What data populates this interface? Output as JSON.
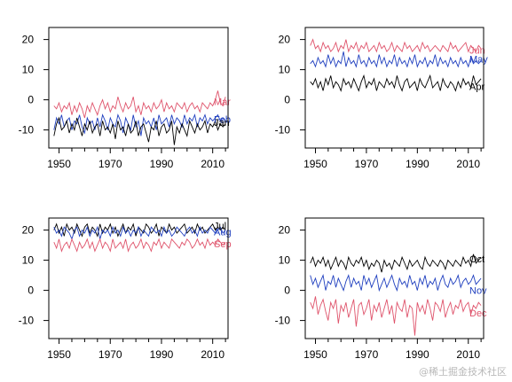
{
  "colors": {
    "black": "#000000",
    "blue": "#1f3fbf",
    "red": "#df536b"
  },
  "watermark": "@稀土掘金技术社区",
  "chart_data": [
    {
      "type": "line",
      "panel": "top-left",
      "xlim": [
        1946,
        2016
      ],
      "ylim": [
        -16,
        24
      ],
      "xticks": [
        1950,
        1970,
        1990,
        2010
      ],
      "yticks": [
        20,
        10,
        0,
        -10
      ],
      "x_start": 1948,
      "series": [
        {
          "name": "Mar",
          "color": "red",
          "labelY": -0.5,
          "values": [
            -2,
            -3,
            -1,
            -4,
            -2,
            -3,
            -1,
            -5,
            -2,
            -4,
            -1,
            -3,
            -6,
            -2,
            -4,
            -1,
            -3,
            -5,
            -2,
            0,
            -3,
            -1,
            -4,
            -2,
            -3,
            1,
            -2,
            -4,
            -1,
            -3,
            -2,
            1,
            -4,
            -2,
            -5,
            -1,
            -3,
            -2,
            -4,
            -1,
            -3,
            -2,
            0,
            -4,
            -1,
            -3,
            -2,
            -4,
            -1,
            -2,
            -3,
            -1,
            -4,
            -2,
            -1,
            -3,
            -2,
            -4,
            -1,
            -2,
            -3,
            -1,
            -2,
            0,
            3,
            -1,
            -2,
            1
          ]
        },
        {
          "name": "Feb",
          "color": "blue",
          "labelY": -6.5,
          "values": [
            -10,
            -6,
            -8,
            -5,
            -9,
            -7,
            -6,
            -10,
            -7,
            -8,
            -5,
            -9,
            -11,
            -6,
            -8,
            -7,
            -10,
            -6,
            -9,
            -5,
            -7,
            -10,
            -6,
            -8,
            -9,
            -5,
            -7,
            -11,
            -6,
            -8,
            -10,
            -5,
            -9,
            -7,
            -12,
            -6,
            -8,
            -7,
            -9,
            -6,
            -10,
            -5,
            -8,
            -7,
            -6,
            -9,
            -5,
            -8,
            -6,
            -7,
            -9,
            -5,
            -8,
            -6,
            -7,
            -5,
            -9,
            -6,
            -7,
            -5,
            -8,
            -6,
            -7,
            -6,
            -5,
            -7,
            -6,
            -7
          ]
        },
        {
          "name": "Jan",
          "color": "black",
          "labelY": -7.5,
          "values": [
            -12,
            -8,
            -6,
            -10,
            -9,
            -7,
            -11,
            -8,
            -10,
            -6,
            -9,
            -12,
            -8,
            -10,
            -7,
            -11,
            -9,
            -8,
            -12,
            -7,
            -10,
            -9,
            -11,
            -8,
            -13,
            -7,
            -10,
            -9,
            -12,
            -8,
            -11,
            -10,
            -7,
            -12,
            -9,
            -8,
            -11,
            -14,
            -9,
            -10,
            -7,
            -12,
            -9,
            -8,
            -11,
            -10,
            -7,
            -15,
            -9,
            -11,
            -8,
            -10,
            -12,
            -7,
            -9,
            -11,
            -8,
            -10,
            -9,
            -7,
            -11,
            -8,
            -9,
            -7,
            -10,
            -8,
            -9,
            -8
          ]
        }
      ]
    },
    {
      "type": "line",
      "panel": "top-right",
      "xlim": [
        1946,
        2016
      ],
      "ylim": [
        -16,
        24
      ],
      "xticks": [
        1950,
        1970,
        1990,
        2010
      ],
      "yticks": [
        20,
        10,
        0,
        -10
      ],
      "x_start": 1948,
      "series": [
        {
          "name": "Jun",
          "color": "red",
          "labelY": 16.5,
          "values": [
            18,
            20,
            17,
            18,
            16,
            19,
            17,
            18,
            16,
            17,
            19,
            16,
            18,
            17,
            20,
            16,
            18,
            17,
            19,
            16,
            18,
            17,
            19,
            16,
            17,
            18,
            16,
            19,
            17,
            18,
            16,
            17,
            19,
            16,
            18,
            17,
            16,
            19,
            17,
            18,
            16,
            17,
            18,
            16,
            19,
            17,
            18,
            16,
            17,
            18,
            17,
            16,
            18,
            17,
            16,
            19,
            17,
            18,
            16,
            17,
            18,
            19,
            16,
            18,
            17,
            16,
            18,
            17
          ]
        },
        {
          "name": "May",
          "color": "blue",
          "labelY": 13.5,
          "values": [
            12,
            13,
            11,
            14,
            12,
            13,
            11,
            15,
            12,
            14,
            11,
            13,
            12,
            16,
            11,
            14,
            12,
            13,
            11,
            15,
            12,
            13,
            11,
            14,
            12,
            13,
            11,
            15,
            12,
            14,
            11,
            13,
            12,
            15,
            11,
            14,
            12,
            13,
            11,
            14,
            12,
            15,
            11,
            13,
            12,
            14,
            11,
            13,
            12,
            15,
            11,
            14,
            12,
            13,
            11,
            14,
            12,
            13,
            11,
            14,
            12,
            13,
            11,
            14,
            12,
            13,
            12,
            13
          ]
        },
        {
          "name": "Apr",
          "color": "black",
          "labelY": 4.5,
          "values": [
            6,
            5,
            7,
            4,
            6,
            3,
            7,
            5,
            8,
            4,
            6,
            5,
            3,
            7,
            5,
            6,
            4,
            7,
            5,
            3,
            6,
            8,
            4,
            6,
            5,
            7,
            3,
            6,
            5,
            4,
            7,
            5,
            6,
            4,
            8,
            5,
            3,
            6,
            7,
            4,
            5,
            6,
            3,
            7,
            5,
            4,
            6,
            8,
            4,
            5,
            6,
            3,
            7,
            5,
            4,
            6,
            5,
            3,
            6,
            4,
            7,
            5,
            6,
            4,
            8,
            5,
            6,
            7
          ]
        }
      ]
    },
    {
      "type": "line",
      "panel": "bottom-left",
      "xlim": [
        1946,
        2016
      ],
      "ylim": [
        -16,
        24
      ],
      "xticks": [
        1950,
        1970,
        1990,
        2010
      ],
      "yticks": [
        20,
        10,
        0,
        -10
      ],
      "x_start": 1948,
      "series": [
        {
          "name": "Jul",
          "color": "black",
          "labelY": 21.5,
          "values": [
            20,
            22,
            19,
            21,
            18,
            22,
            20,
            21,
            19,
            22,
            20,
            18,
            21,
            22,
            19,
            21,
            20,
            18,
            22,
            19,
            21,
            20,
            22,
            19,
            21,
            18,
            20,
            22,
            19,
            21,
            20,
            22,
            18,
            21,
            20,
            19,
            22,
            21,
            19,
            20,
            22,
            18,
            21,
            20,
            19,
            22,
            20,
            21,
            19,
            20,
            21,
            22,
            19,
            20,
            21,
            19,
            22,
            20,
            21,
            19,
            20,
            21,
            22,
            20,
            21,
            20,
            21,
            20
          ]
        },
        {
          "name": "Aug",
          "color": "blue",
          "labelY": 19.5,
          "values": [
            21,
            19,
            20,
            18,
            21,
            20,
            19,
            17,
            20,
            21,
            18,
            20,
            19,
            21,
            18,
            20,
            19,
            21,
            17,
            20,
            19,
            20,
            18,
            21,
            19,
            20,
            18,
            21,
            19,
            20,
            18,
            20,
            19,
            21,
            18,
            20,
            19,
            18,
            21,
            20,
            19,
            20,
            18,
            21,
            19,
            20,
            18,
            19,
            21,
            20,
            19,
            18,
            20,
            21,
            19,
            20,
            18,
            21,
            19,
            20,
            19,
            21,
            20,
            19,
            20,
            21,
            19,
            20
          ]
        },
        {
          "name": "Sep",
          "color": "red",
          "labelY": 15.5,
          "values": [
            16,
            14,
            17,
            13,
            15,
            16,
            14,
            17,
            15,
            13,
            16,
            14,
            15,
            17,
            14,
            16,
            13,
            15,
            17,
            14,
            16,
            15,
            13,
            17,
            14,
            15,
            16,
            14,
            17,
            13,
            15,
            16,
            14,
            15,
            17,
            14,
            16,
            15,
            13,
            16,
            15,
            17,
            14,
            16,
            15,
            14,
            17,
            16,
            15,
            14,
            16,
            15,
            17,
            16,
            14,
            15,
            17,
            15,
            16,
            14,
            17,
            15,
            16,
            15,
            17,
            16,
            15,
            16
          ]
        }
      ]
    },
    {
      "type": "line",
      "panel": "bottom-right",
      "xlim": [
        1946,
        2016
      ],
      "ylim": [
        -16,
        24
      ],
      "xticks": [
        1950,
        1970,
        1990,
        2010
      ],
      "yticks": [
        20,
        10,
        0,
        -10
      ],
      "x_start": 1948,
      "series": [
        {
          "name": "Oct",
          "color": "black",
          "labelY": 10.5,
          "values": [
            9,
            11,
            8,
            10,
            9,
            11,
            8,
            10,
            7,
            9,
            11,
            8,
            10,
            9,
            7,
            11,
            9,
            8,
            10,
            9,
            11,
            8,
            10,
            7,
            9,
            8,
            10,
            9,
            6,
            10,
            8,
            9,
            7,
            10,
            9,
            8,
            11,
            9,
            7,
            10,
            8,
            9,
            10,
            8,
            7,
            11,
            9,
            8,
            10,
            9,
            8,
            10,
            9,
            7,
            10,
            9,
            8,
            10,
            9,
            8,
            11,
            9,
            10,
            8,
            12,
            9,
            10,
            11
          ]
        },
        {
          "name": "Nov",
          "color": "blue",
          "labelY": 0,
          "values": [
            5,
            2,
            4,
            1,
            3,
            5,
            0,
            3,
            2,
            5,
            1,
            4,
            2,
            0,
            3,
            5,
            1,
            4,
            2,
            3,
            0,
            5,
            2,
            4,
            1,
            3,
            5,
            0,
            2,
            4,
            1,
            3,
            5,
            2,
            0,
            4,
            2,
            3,
            1,
            5,
            2,
            3,
            0,
            4,
            2,
            5,
            1,
            3,
            2,
            4,
            0,
            3,
            5,
            2,
            1,
            4,
            2,
            3,
            5,
            1,
            3,
            4,
            2,
            3,
            5,
            2,
            3,
            4
          ]
        },
        {
          "name": "Dec",
          "color": "red",
          "labelY": -7.5,
          "values": [
            -4,
            -6,
            -2,
            -8,
            -5,
            -3,
            -7,
            -10,
            -4,
            -6,
            -3,
            -11,
            -5,
            -7,
            -4,
            -9,
            -6,
            -3,
            -12,
            -5,
            -4,
            -8,
            -6,
            -3,
            -10,
            -5,
            -7,
            -4,
            -9,
            -6,
            -3,
            -8,
            -5,
            -11,
            -4,
            -6,
            -7,
            -3,
            -9,
            -5,
            -6,
            -15,
            -4,
            -7,
            -5,
            -8,
            -3,
            -6,
            -10,
            -4,
            -5,
            -7,
            -3,
            -9,
            -6,
            -4,
            -8,
            -5,
            -6,
            -3,
            -7,
            -5,
            -4,
            -8,
            -5,
            -6,
            -4,
            -5
          ]
        }
      ]
    }
  ]
}
